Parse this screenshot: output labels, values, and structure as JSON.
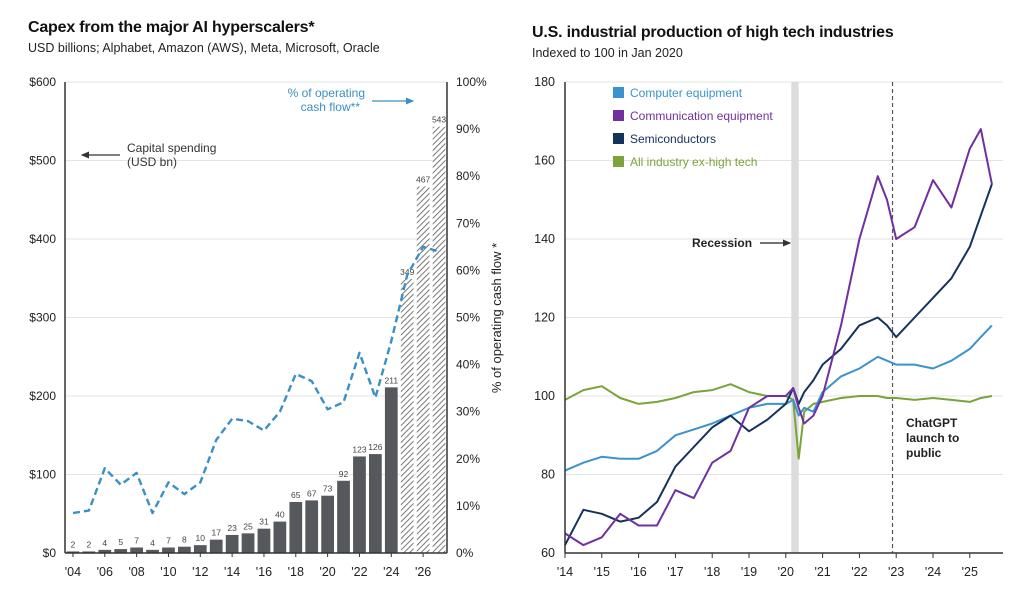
{
  "chart_data": [
    {
      "type": "bar",
      "title": "Capex from the major AI hyperscalers*",
      "subtitle": "USD billions; Alphabet, Amazon (AWS), Meta, Microsoft, Oracle",
      "xlabel": "",
      "ylabel": "",
      "y2label": "% of operating cash flow *",
      "ylim": [
        0,
        600
      ],
      "y2lim": [
        0,
        100
      ],
      "grid": true,
      "y_ticks": [
        "$0",
        "$100",
        "$200",
        "$300",
        "$400",
        "$500",
        "$600"
      ],
      "y2_ticks": [
        "0%",
        "10%",
        "20%",
        "30%",
        "40%",
        "50%",
        "60%",
        "70%",
        "80%",
        "90%",
        "100%"
      ],
      "x_tick_labels": [
        "'04",
        "'06",
        "'08",
        "'10",
        "'12",
        "'14",
        "'16",
        "'18",
        "'20",
        "'22",
        "'24",
        "'26"
      ],
      "categories": [
        2004,
        2005,
        2006,
        2007,
        2008,
        2009,
        2010,
        2011,
        2012,
        2013,
        2014,
        2015,
        2016,
        2017,
        2018,
        2019,
        2020,
        2021,
        2022,
        2023,
        2024,
        2025,
        2026,
        2027
      ],
      "series": [
        {
          "name": "Capital spending (USD bn)",
          "type": "bar",
          "axis": "left",
          "color": "#55585c",
          "values": [
            2,
            2,
            4,
            5,
            7,
            4,
            7,
            8,
            10,
            17,
            23,
            25,
            31,
            40,
            65,
            67,
            73,
            92,
            123,
            126,
            211,
            349,
            467,
            543
          ],
          "labels": [
            "2",
            "2",
            "4",
            "5",
            "7",
            "4",
            "7",
            "8",
            "10",
            "17",
            "23",
            "25",
            "31",
            "40",
            "65",
            "67",
            "73",
            "92",
            "123",
            "126",
            "211",
            "349",
            "467",
            "543"
          ],
          "estimated_from_index": 21
        },
        {
          "name": "% of operating cash flow**",
          "type": "line",
          "style": "dashed",
          "axis": "right",
          "color": "#3a8fc4",
          "values": [
            8.5,
            9,
            18,
            14.5,
            17,
            8.5,
            15,
            12.5,
            15,
            24,
            28.5,
            28,
            26,
            30,
            38,
            36.5,
            30.5,
            32,
            42.5,
            33,
            45,
            59,
            65,
            64
          ]
        }
      ],
      "annotations": [
        {
          "text": "Capital spending\n(USD bn)",
          "arrow": "left"
        },
        {
          "text": "% of operating\ncash flow**",
          "arrow": "right"
        }
      ]
    },
    {
      "type": "line",
      "title": "U.S. industrial production of high tech industries",
      "subtitle": "Indexed to 100 in Jan 2020",
      "xlabel": "",
      "ylabel": "",
      "ylim": [
        60,
        180
      ],
      "xlim": [
        2014,
        2025.9
      ],
      "grid": true,
      "legend": "top-left",
      "y_ticks": [
        "60",
        "80",
        "100",
        "120",
        "140",
        "160",
        "180"
      ],
      "x_tick_labels": [
        "'14",
        "'15",
        "'16",
        "'17",
        "'18",
        "'19",
        "'20",
        "'21",
        "'22",
        "'23",
        "'24",
        "'25"
      ],
      "x": [
        2014.0,
        2014.5,
        2015.0,
        2015.5,
        2016.0,
        2016.5,
        2017.0,
        2017.5,
        2018.0,
        2018.5,
        2019.0,
        2019.5,
        2020.0,
        2020.2,
        2020.35,
        2020.5,
        2020.75,
        2021.0,
        2021.5,
        2022.0,
        2022.5,
        2022.75,
        2023.0,
        2023.5,
        2024.0,
        2024.5,
        2025.0,
        2025.3,
        2025.6
      ],
      "series": [
        {
          "name": "Computer equipment",
          "color": "#3a93cc",
          "values": [
            81,
            83,
            84.5,
            84,
            84,
            86,
            90,
            91.5,
            93,
            95,
            97,
            98,
            98,
            99,
            95,
            97,
            96,
            101,
            105,
            107,
            110,
            109,
            108,
            108,
            107,
            109,
            112,
            115,
            118
          ]
        },
        {
          "name": "Communication equipment",
          "color": "#7030a0",
          "values": [
            65,
            62,
            64,
            70,
            67,
            67,
            76,
            74,
            83,
            86,
            97,
            100,
            100,
            102,
            97,
            93,
            95,
            100,
            118,
            140,
            156,
            150,
            140,
            143,
            155,
            148,
            163,
            168,
            154
          ]
        },
        {
          "name": "Semiconductors",
          "color": "#14325c",
          "values": [
            62,
            71,
            70,
            68,
            69,
            73,
            82,
            87,
            92,
            95,
            91,
            94,
            98,
            102,
            98,
            101,
            104,
            108,
            112,
            118,
            120,
            118,
            115,
            120,
            125,
            130,
            138,
            146,
            154
          ]
        },
        {
          "name": "All industry ex-high tech",
          "color": "#7aa33a",
          "values": [
            99,
            101.5,
            102.5,
            99.5,
            98,
            98.5,
            99.5,
            101,
            101.5,
            103,
            101,
            100,
            100,
            99,
            84,
            96,
            98,
            98.5,
            99.5,
            100,
            100,
            99.5,
            99.5,
            99,
            99.5,
            99,
            98.5,
            99.5,
            100
          ]
        }
      ],
      "annotations": [
        {
          "text": "Recession",
          "arrow": "right",
          "x_range": [
            2020.15,
            2020.35
          ]
        },
        {
          "text": "ChatGPT\nlaunch to\npublic",
          "x": 2022.9,
          "style": "dashed-vertical-line"
        }
      ]
    }
  ]
}
